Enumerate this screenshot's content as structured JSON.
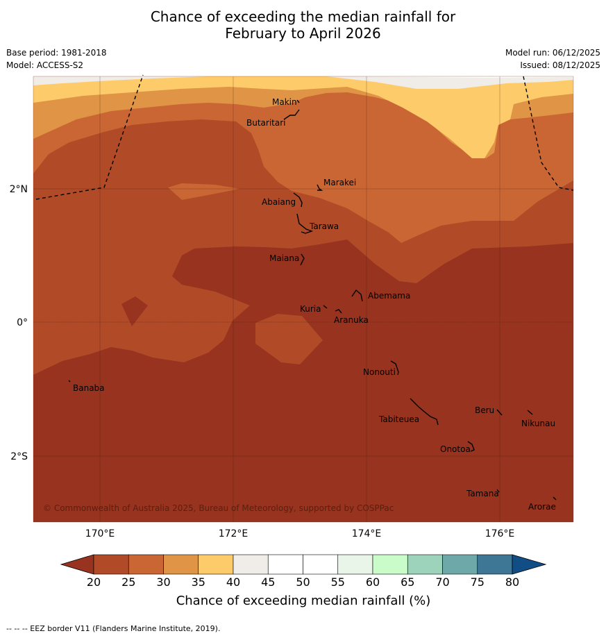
{
  "title": {
    "line1": "Chance of exceeding the median rainfall for",
    "line2": "February to April 2026"
  },
  "meta_left": {
    "base_period": "Base period: 1981-2018",
    "model": "Model: ACCESS-S2"
  },
  "meta_right": {
    "model_run": "Model run: 06/12/2025",
    "issued": "Issued: 08/12/2025"
  },
  "axes": {
    "lat_labels": [
      "2°N",
      "0°",
      "2°S"
    ],
    "lon_labels": [
      "170°E",
      "172°E",
      "174°E",
      "176°E"
    ]
  },
  "places": [
    "Makin",
    "Butaritari",
    "Marakei",
    "Abaiang",
    "Tarawa",
    "Maiana",
    "Abemama",
    "Kuria",
    "Aranuka",
    "Nonouti",
    "Banaba",
    "Beru",
    "Tabiteuea",
    "Nikunau",
    "Onotoa",
    "Tamana",
    "Arorae"
  ],
  "copyright": "© Commonwealth of Australia 2025, Bureau of Meteorology, supported by COSPPac",
  "colorbar": {
    "title": "Chance of exceeding median rainfall (%)",
    "ticks": [
      "20",
      "25",
      "30",
      "35",
      "40",
      "45",
      "50",
      "55",
      "60",
      "65",
      "70",
      "75",
      "80"
    ],
    "colors": {
      "below_20": "#97331f",
      "c20_25": "#b04a27",
      "c25_30": "#c96633",
      "c30_35": "#e09445",
      "c35_40": "#fecb6b",
      "c40_45": "#f0ece7",
      "c45_50": "#ffffff",
      "c50_55": "#ffffff",
      "c55_60": "#e8f5e8",
      "c60_65": "#cafcca",
      "c65_70": "#9ed3bb",
      "c70_75": "#6fa8a8",
      "c75_80": "#3e7696",
      "above_80": "#124e86"
    }
  },
  "footer": "--  --  -- EEZ border V11 (Flanders Marine Institute, 2019)."
}
